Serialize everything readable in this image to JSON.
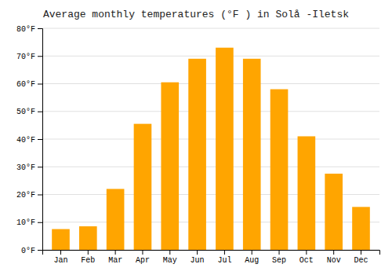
{
  "chart_data": {
    "type": "bar",
    "title": "Average monthly temperatures (°F ) in Solå -Iletsk",
    "categories": [
      "Jan",
      "Feb",
      "Mar",
      "Apr",
      "May",
      "Jun",
      "Jul",
      "Aug",
      "Sep",
      "Oct",
      "Nov",
      "Dec"
    ],
    "values": [
      7.5,
      8.5,
      22,
      45.5,
      60.5,
      69,
      73,
      69,
      58,
      41,
      27.5,
      15.5
    ],
    "color": "#FFA500",
    "ylim": [
      0,
      80
    ],
    "yticks": [
      {
        "value": 0,
        "label": "0°F"
      },
      {
        "value": 10,
        "label": "10°F"
      },
      {
        "value": 20,
        "label": "20°F"
      },
      {
        "value": 30,
        "label": "30°F"
      },
      {
        "value": 40,
        "label": "40°F"
      },
      {
        "value": 50,
        "label": "50°F"
      },
      {
        "value": 60,
        "label": "60°F"
      },
      {
        "value": 70,
        "label": "70°F"
      },
      {
        "value": 80,
        "label": "80°F"
      }
    ],
    "grid": true
  }
}
